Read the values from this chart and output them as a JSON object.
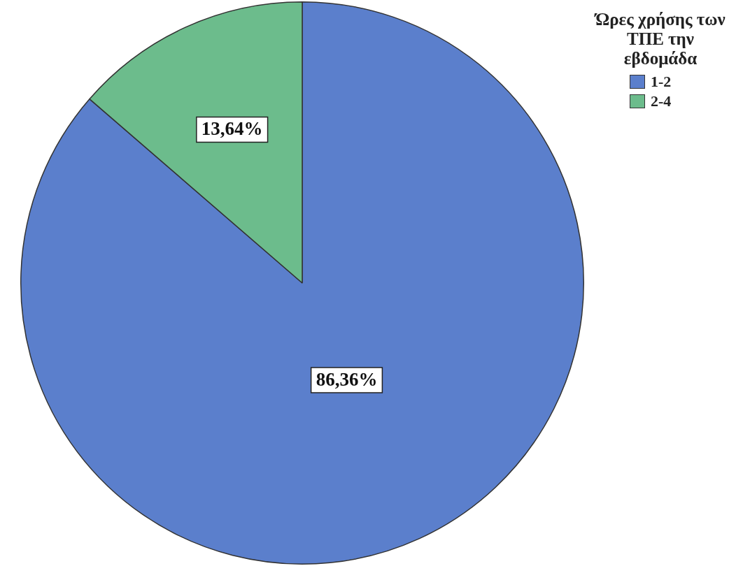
{
  "chart_data": {
    "type": "pie",
    "legend_title": "Ώρες χρήσης των ΤΠΕ την εβδομάδα",
    "categories": [
      "1-2",
      "2-4"
    ],
    "values": [
      86.36,
      13.64
    ],
    "colors": [
      "#5b7fcc",
      "#6cbc8c"
    ],
    "value_labels": [
      "86,36%",
      "13,64%"
    ],
    "legend": "top right"
  }
}
